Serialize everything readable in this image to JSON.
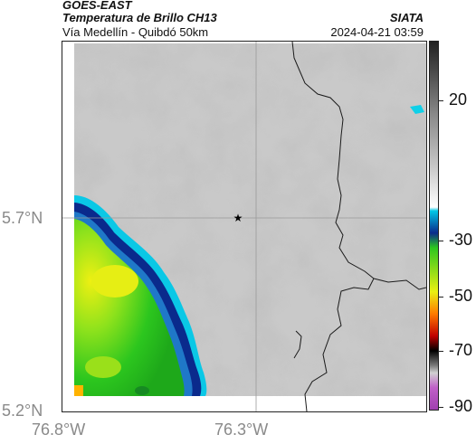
{
  "header": {
    "satellite": "GOES-EAST",
    "product": "Temperatura de Brillo CH13",
    "region": "Vía Medellín - Quibdó 50km",
    "brand": "SIATA",
    "timestamp": "2024-04-21 03:59"
  },
  "axes": {
    "lat_labels": [
      "5.7°N",
      "5.2°N"
    ],
    "lon_labels": [
      "76.8°W",
      "76.3°W"
    ]
  },
  "marker": {
    "symbol": "★",
    "name": "station-marker"
  },
  "colorbar": {
    "labels": [
      "20",
      "-30",
      "-50",
      "-70",
      "-90"
    ],
    "colors": [
      "#222222",
      "#ffffff",
      "#00c8e6",
      "#0a2a8c",
      "#2cc61e",
      "#eaf012",
      "#ff7a00",
      "#c00000",
      "#000000",
      "#c060c8"
    ]
  }
}
